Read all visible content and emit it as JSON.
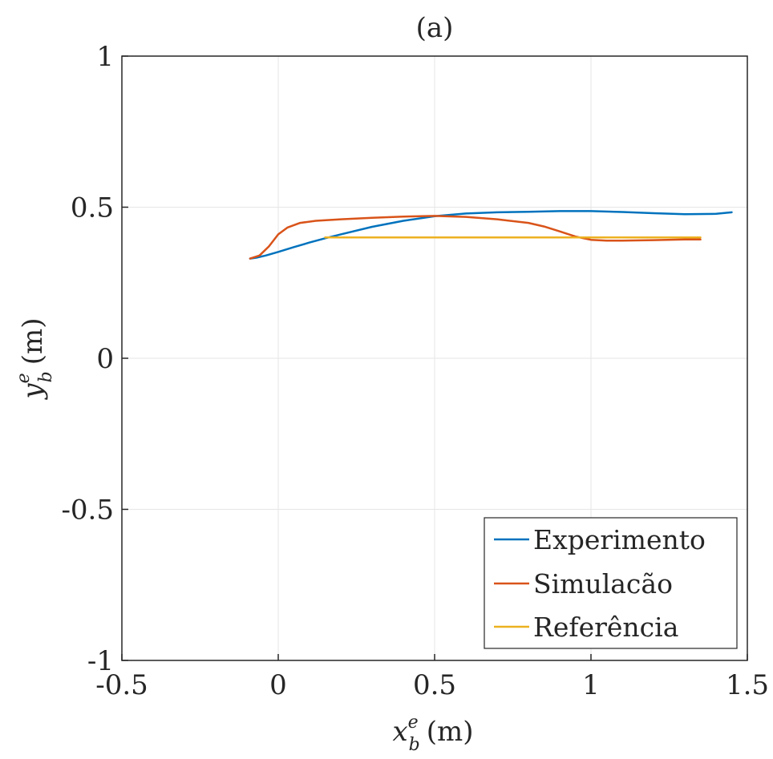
{
  "chart_data": {
    "type": "line",
    "title": "(a)",
    "xlabel_main": "x",
    "xlabel_sup": "e",
    "xlabel_sub": "b",
    "xlabel_unit": "(m)",
    "ylabel_main": "y",
    "ylabel_sup": "e",
    "ylabel_sub": "b",
    "ylabel_unit": "(m)",
    "xlim": [
      -0.5,
      1.5
    ],
    "ylim": [
      -1,
      1
    ],
    "xticks": [
      -0.5,
      0,
      0.5,
      1,
      1.5
    ],
    "xtick_labels": [
      "-0.5",
      "0",
      "0.5",
      "1",
      "1.5"
    ],
    "yticks": [
      -1,
      -0.5,
      0,
      0.5,
      1
    ],
    "ytick_labels": [
      "-1",
      "-0.5",
      "0",
      "0.5",
      "1"
    ],
    "grid": true,
    "legend_position": "bottom-right",
    "series": [
      {
        "name": "Experimento",
        "color": "#0072BD",
        "x": [
          -0.09,
          -0.07,
          -0.04,
          0.0,
          0.05,
          0.1,
          0.15,
          0.2,
          0.3,
          0.4,
          0.5,
          0.6,
          0.7,
          0.8,
          0.9,
          1.0,
          1.1,
          1.2,
          1.3,
          1.4,
          1.45
        ],
        "y": [
          0.33,
          0.333,
          0.34,
          0.352,
          0.368,
          0.383,
          0.397,
          0.41,
          0.435,
          0.455,
          0.47,
          0.479,
          0.483,
          0.485,
          0.487,
          0.487,
          0.484,
          0.48,
          0.477,
          0.478,
          0.483
        ]
      },
      {
        "name": "Simulacão",
        "color": "#D95319",
        "x": [
          -0.09,
          -0.06,
          -0.03,
          0.0,
          0.03,
          0.07,
          0.12,
          0.2,
          0.3,
          0.4,
          0.5,
          0.6,
          0.7,
          0.8,
          0.85,
          0.9,
          0.95,
          1.0,
          1.05,
          1.1,
          1.2,
          1.3,
          1.35
        ],
        "y": [
          0.33,
          0.34,
          0.37,
          0.41,
          0.433,
          0.448,
          0.455,
          0.46,
          0.465,
          0.469,
          0.471,
          0.468,
          0.46,
          0.448,
          0.436,
          0.42,
          0.403,
          0.392,
          0.389,
          0.389,
          0.391,
          0.393,
          0.393
        ]
      },
      {
        "name": "Referência",
        "color": "#EDB120",
        "x": [
          0.15,
          1.35
        ],
        "y": [
          0.4,
          0.4
        ]
      }
    ]
  }
}
